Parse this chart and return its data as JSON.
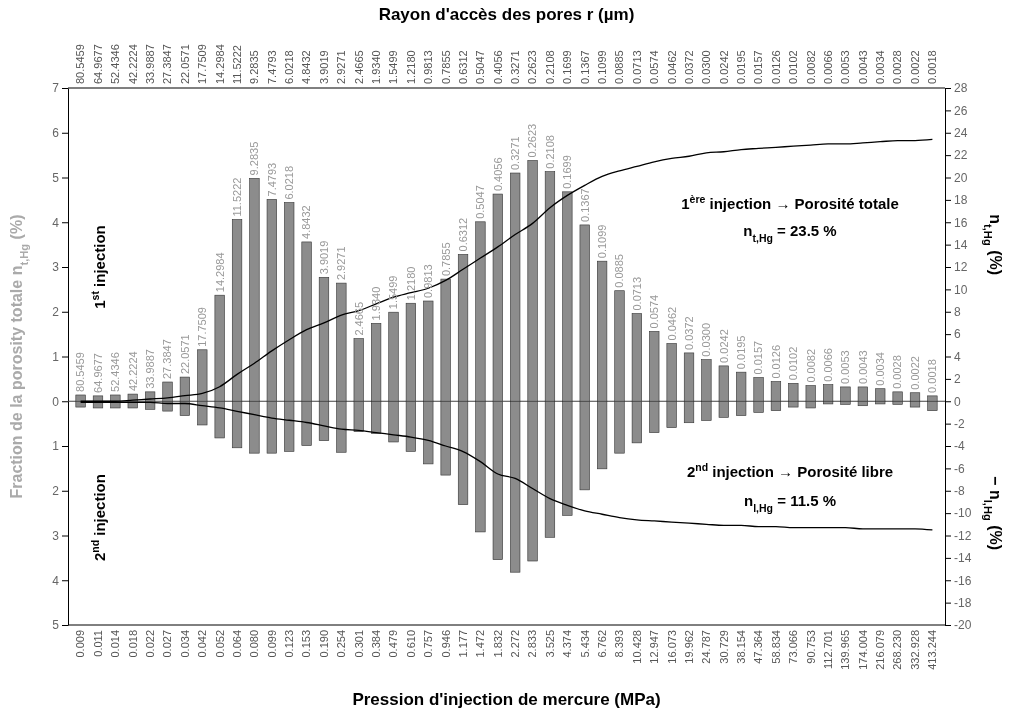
{
  "chart_data": {
    "type": "bar",
    "stacked": true,
    "xlabel": "Pression d'injection de mercure (MPa)",
    "x2label": "Rayon d'accès des pores r (µm)",
    "ylabel": "Fraction de la porosity totale n$_{t,Hg}$ (%)",
    "y2label": "n$_{t,Hg}$ (%)",
    "categories": [
      "0.009",
      "0.011",
      "0.014",
      "0.018",
      "0.022",
      "0.027",
      "0.034",
      "0.042",
      "0.052",
      "0.064",
      "0.080",
      "0.099",
      "0.123",
      "0.153",
      "0.190",
      "0.254",
      "0.301",
      "0.384",
      "0.479",
      "0.610",
      "0.757",
      "0.946",
      "1.177",
      "1.472",
      "1.832",
      "2.272",
      "2.833",
      "3.525",
      "4.374",
      "5.434",
      "6.762",
      "8.393",
      "10.428",
      "12.947",
      "16.073",
      "19.962",
      "24.787",
      "30.729",
      "38.154",
      "47.364",
      "58.834",
      "73.066",
      "90.753",
      "112.701",
      "139.965",
      "174.004",
      "216.079",
      "268.230",
      "332.928",
      "413.244"
    ],
    "series": [
      {
        "color": "#8c8c8c",
        "values": [
          0.14,
          0.12,
          0.14,
          0.16,
          0.21,
          0.43,
          0.54,
          1.15,
          2.37,
          4.06,
          4.98,
          4.51,
          4.44,
          3.56,
          2.77,
          2.64,
          1.4,
          1.74,
          1.99,
          2.19,
          2.24,
          2.73,
          3.28,
          4.01,
          4.63,
          5.1,
          5.38,
          5.13,
          4.68,
          3.94,
          3.13,
          2.47,
          1.96,
          1.56,
          1.29,
          1.08,
          0.93,
          0.79,
          0.65,
          0.53,
          0.44,
          0.4,
          0.35,
          0.37,
          0.32,
          0.32,
          0.28,
          0.21,
          0.19,
          0.12
        ]
      },
      {
        "color": "#8c8c8c",
        "values": [
          -0.13,
          -0.15,
          -0.15,
          -0.15,
          -0.18,
          -0.22,
          -0.32,
          -0.53,
          -0.82,
          -1.04,
          -1.16,
          -1.16,
          -1.12,
          -0.99,
          -0.88,
          -1.14,
          -0.68,
          -0.72,
          -0.91,
          -1.12,
          -1.4,
          -1.65,
          -2.31,
          -2.92,
          -3.54,
          -3.82,
          -3.57,
          -3.04,
          -2.55,
          -1.98,
          -1.51,
          -1.16,
          -0.93,
          -0.7,
          -0.59,
          -0.48,
          -0.43,
          -0.36,
          -0.32,
          -0.25,
          -0.21,
          -0.13,
          -0.15,
          -0.06,
          -0.07,
          -0.1,
          -0.06,
          -0.07,
          -0.13,
          -0.21
        ]
      },
      {
        "type": "line",
        "axis": "y2",
        "color": "#000000",
        "values": [
          0,
          0,
          0,
          0.1,
          0.2,
          0.3,
          0.5,
          0.7,
          1.3,
          2.4,
          3.4,
          4.5,
          5.5,
          6.4,
          7,
          7.7,
          8.1,
          8.7,
          9.3,
          9.7,
          10.1,
          10.8,
          11.8,
          12.8,
          13.8,
          14.9,
          15.9,
          17.3,
          18.4,
          19.3,
          20.1,
          20.6,
          21,
          21.4,
          21.7,
          21.9,
          22.2,
          22.3,
          22.5,
          22.6,
          22.7,
          22.8,
          22.9,
          23,
          23,
          23.1,
          23.2,
          23.3,
          23.3,
          23.4
        ]
      },
      {
        "type": "line",
        "axis": "y2",
        "color": "#000000",
        "values": [
          -0.1,
          -0.1,
          -0.1,
          -0.1,
          -0.1,
          -0.2,
          -0.2,
          -0.4,
          -0.6,
          -0.9,
          -1.2,
          -1.5,
          -1.7,
          -1.9,
          -2.2,
          -2.5,
          -2.6,
          -2.8,
          -3,
          -3.2,
          -3.5,
          -4,
          -4.5,
          -5.4,
          -6.5,
          -6.9,
          -7.8,
          -8.7,
          -9.3,
          -9.8,
          -10.1,
          -10.4,
          -10.6,
          -10.7,
          -10.8,
          -10.9,
          -11,
          -11.1,
          -11.1,
          -11.2,
          -11.2,
          -11.3,
          -11.3,
          -11.3,
          -11.3,
          -11.4,
          -11.4,
          -11.4,
          -11.4,
          -11.5
        ]
      }
    ],
    "ylim": [
      -5,
      7
    ],
    "yticks": [
      7,
      6,
      5,
      4,
      3,
      2,
      1,
      0,
      {
        "value": -1,
        "label": "1"
      },
      {
        "value": -2,
        "label": "2"
      },
      {
        "value": -3,
        "label": "3"
      },
      {
        "value": -4,
        "label": "4"
      },
      {
        "value": -5,
        "label": "5"
      }
    ],
    "y2lim": [
      -20,
      28
    ],
    "y2ticks": [
      28,
      26,
      24,
      22,
      20,
      18,
      16,
      14,
      12,
      10,
      8,
      6,
      4,
      2,
      0,
      -2,
      -4,
      -6,
      -8,
      -10,
      -12,
      -14,
      -16,
      -18,
      -20
    ],
    "annotations": [
      "1$^{st}$ injection",
      "2$^{nd}$ injection",
      "1$^{ère}$ injection → Porosité totale",
      "n$_{t,Hg}$ = 23.5 %",
      "2$^{nd}$ injection → Porosité libre",
      "n$_{l,Hg}$ = 11.5 %",
      "− n$_{l,Hg}$ (%)",
      "80.5459",
      "64.9677",
      "52.4346",
      "42.2224",
      "33.9887",
      "27.3847",
      "22.0571",
      "17.7509",
      "14.2984",
      "11.5222",
      "9.2835",
      "7.4793",
      "6.0218",
      "4.8432",
      "3.9019",
      "2.9271",
      "2.4665",
      "1.9340",
      "1.5499",
      "1.2180",
      "0.9813",
      "0.7855",
      "0.6312",
      "0.5047",
      "0.4056",
      "0.3271",
      "0.2623",
      "0.2108",
      "0.1699",
      "0.1367",
      "0.1099",
      "0.0885",
      "0.0713",
      "0.0574",
      "0.0462",
      "0.0372",
      "0.0300",
      "0.0242",
      "0.0195",
      "0.0157",
      "0.0126",
      "0.0102",
      "0.0082",
      "0.0066",
      "0.0053",
      "0.0043",
      "0.0034",
      "0.0028",
      "0.0022",
      "0.0018",
      {
        "text": "80.5459",
        "x": "0.009",
        "y": 0.14
      },
      {
        "text": "64.9677",
        "x": "0.011",
        "y": 0.12
      },
      {
        "text": "52.4346",
        "x": "0.014",
        "y": 0.14
      },
      {
        "text": "42.2224",
        "x": "0.018",
        "y": 0.16
      },
      {
        "text": "33.9887",
        "x": "0.022",
        "y": 0.21
      },
      {
        "text": "27.3847",
        "x": "0.027",
        "y": 0.43
      },
      {
        "text": "22.0571",
        "x": "0.034",
        "y": 0.54
      },
      {
        "text": "17.7509",
        "x": "0.042",
        "y": 1.15
      },
      {
        "text": "14.2984",
        "x": "0.052",
        "y": 2.37
      },
      {
        "text": "11.5222",
        "x": "0.064",
        "y": 4.06
      },
      {
        "text": "9.2835",
        "x": "0.080",
        "y": 4.98
      },
      {
        "text": "7.4793",
        "x": "0.099",
        "y": 4.51
      },
      {
        "text": "6.0218",
        "x": "0.123",
        "y": 4.44
      },
      {
        "text": "4.8432",
        "x": "0.153",
        "y": 3.56
      },
      {
        "text": "3.9019",
        "x": "0.190",
        "y": 2.77
      },
      {
        "text": "2.9271",
        "x": "0.254",
        "y": 2.64
      },
      {
        "text": "2.4665",
        "x": "0.301",
        "y": 1.4
      },
      {
        "text": "1.9340",
        "x": "0.384",
        "y": 1.74
      },
      {
        "text": "1.5499",
        "x": "0.479",
        "y": 1.99
      },
      {
        "text": "1.2180",
        "x": "0.610",
        "y": 2.19
      },
      {
        "text": "0.9813",
        "x": "0.757",
        "y": 2.24
      },
      {
        "text": "0.7855",
        "x": "0.946",
        "y": 2.73
      },
      {
        "text": "0.6312",
        "x": "1.177",
        "y": 3.28
      },
      {
        "text": "0.5047",
        "x": "1.472",
        "y": 4.01
      },
      {
        "text": "0.4056",
        "x": "1.832",
        "y": 4.63
      },
      {
        "text": "0.3271",
        "x": "2.272",
        "y": 5.1
      },
      {
        "text": "0.2623",
        "x": "2.833",
        "y": 5.38
      },
      {
        "text": "0.2108",
        "x": "3.525",
        "y": 5.13
      },
      {
        "text": "0.1699",
        "x": "4.374",
        "y": 4.68
      },
      {
        "text": "0.1367",
        "x": "5.434",
        "y": 3.94
      },
      {
        "text": "0.1099",
        "x": "6.762",
        "y": 3.13
      },
      {
        "text": "0.0885",
        "x": "8.393",
        "y": 2.47
      },
      {
        "text": "0.0713",
        "x": "10.428",
        "y": 1.96
      },
      {
        "text": "0.0574",
        "x": "12.947",
        "y": 1.56
      },
      {
        "text": "0.0462",
        "x": "16.073",
        "y": 1.29
      },
      {
        "text": "0.0372",
        "x": "19.962",
        "y": 1.08
      },
      {
        "text": "0.0300",
        "x": "24.787",
        "y": 0.93
      },
      {
        "text": "0.0242",
        "x": "30.729",
        "y": 0.79
      },
      {
        "text": "0.0195",
        "x": "38.154",
        "y": 0.65
      },
      {
        "text": "0.0157",
        "x": "47.364",
        "y": 0.53
      },
      {
        "text": "0.0126",
        "x": "58.834",
        "y": 0.44
      },
      {
        "text": "0.0102",
        "x": "73.066",
        "y": 0.4
      },
      {
        "text": "0.0082",
        "x": "90.753",
        "y": 0.35
      },
      {
        "text": "0.0066",
        "x": "112.701",
        "y": 0.37
      },
      {
        "text": "0.0053",
        "x": "139.965",
        "y": 0.32
      },
      {
        "text": "0.0043",
        "x": "174.004",
        "y": 0.32
      },
      {
        "text": "0.0034",
        "x": "216.079",
        "y": 0.28
      },
      {
        "text": "0.0028",
        "x": "268.230",
        "y": 0.21
      },
      {
        "text": "0.0022",
        "x": "332.928",
        "y": 0.19
      },
      {
        "text": "0.0018",
        "x": "413.244",
        "y": 0.12
      }
    ]
  }
}
